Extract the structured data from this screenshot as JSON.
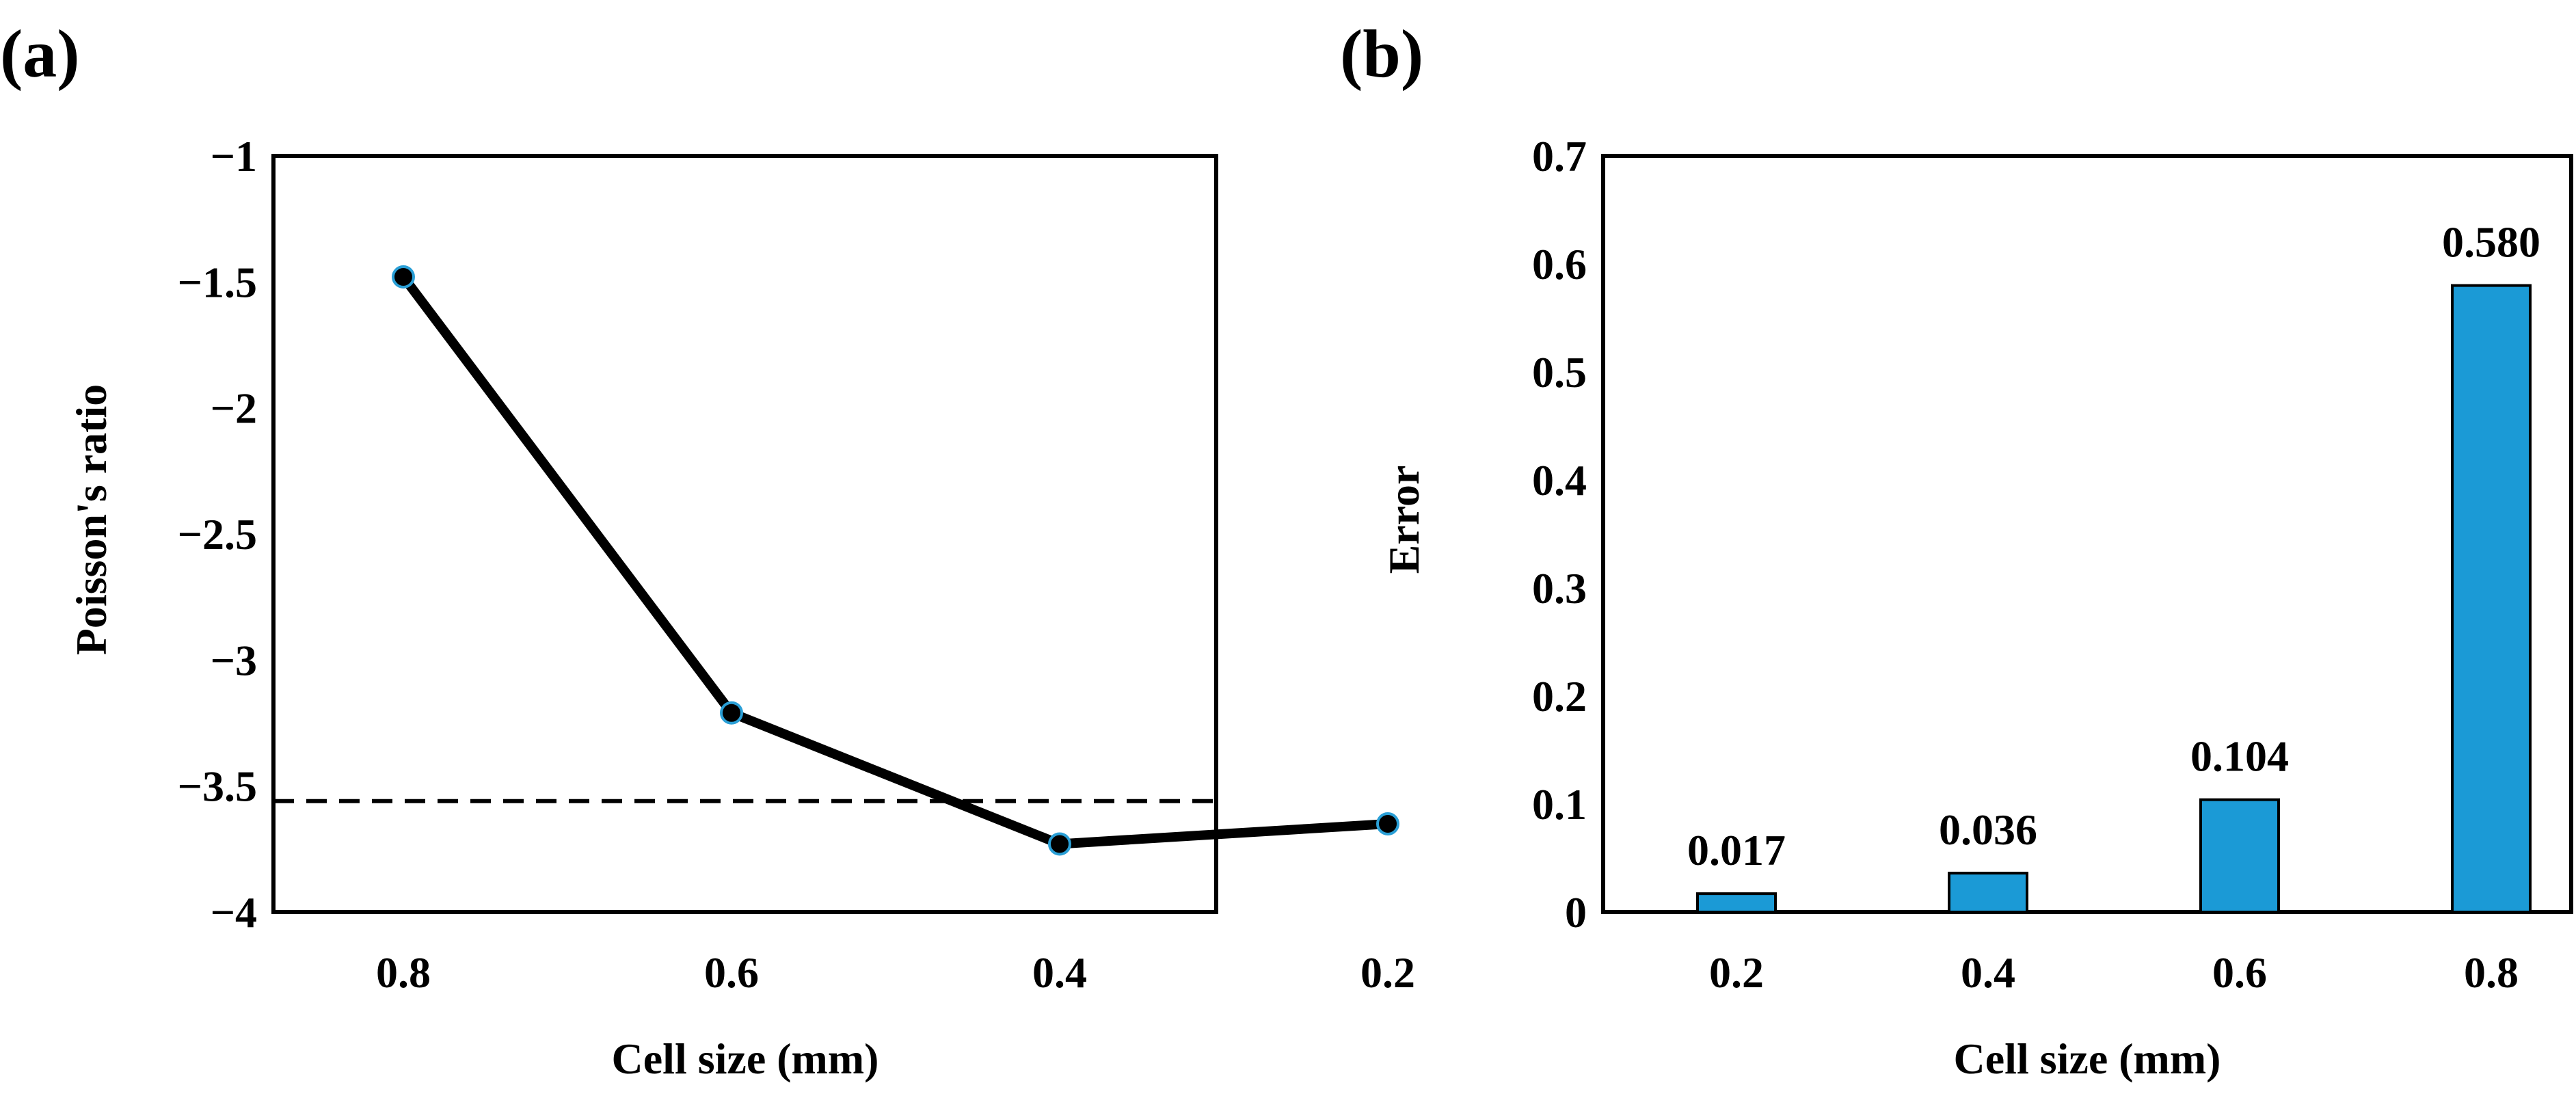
{
  "colors": {
    "bar": "#1b9ad6",
    "line": "#000000",
    "marker": "#000000",
    "marker_edge": "#2a9fd6",
    "reference": "#000000"
  },
  "chart_data": [
    {
      "panel": "(a)",
      "type": "line",
      "categories": [
        "0.8",
        "0.6",
        "0.4",
        "0.2"
      ],
      "series": [
        {
          "name": "Poisson's ratio",
          "values": [
            -1.48,
            -3.21,
            -3.73,
            -3.65
          ]
        }
      ],
      "reference_line": {
        "value": -3.56,
        "style": "dashed"
      },
      "xlabel": "Cell size (mm)",
      "ylabel": "Poisson's ratio",
      "ylim": [
        -4,
        -1
      ],
      "yticks": [
        -1,
        -1.5,
        -2,
        -2.5,
        -3,
        -3.5,
        -4
      ],
      "ytick_labels": [
        "−1",
        "−1.5",
        "−2",
        "−2.5",
        "−3",
        "−3.5",
        "−4"
      ],
      "grid": false
    },
    {
      "panel": "(b)",
      "type": "bar",
      "categories": [
        "0.2",
        "0.4",
        "0.6",
        "0.8"
      ],
      "values": [
        0.017,
        0.036,
        0.104,
        0.58
      ],
      "data_labels": [
        "0.017",
        "0.036",
        "0.104",
        "0.580"
      ],
      "xlabel": "Cell size (mm)",
      "ylabel": "Error",
      "ylim": [
        0,
        0.7
      ],
      "yticks": [
        0,
        0.1,
        0.2,
        0.3,
        0.4,
        0.5,
        0.6,
        0.7
      ],
      "ytick_labels": [
        "0",
        "0.1",
        "0.2",
        "0.3",
        "0.4",
        "0.5",
        "0.6",
        "0.7"
      ],
      "grid": false
    }
  ]
}
